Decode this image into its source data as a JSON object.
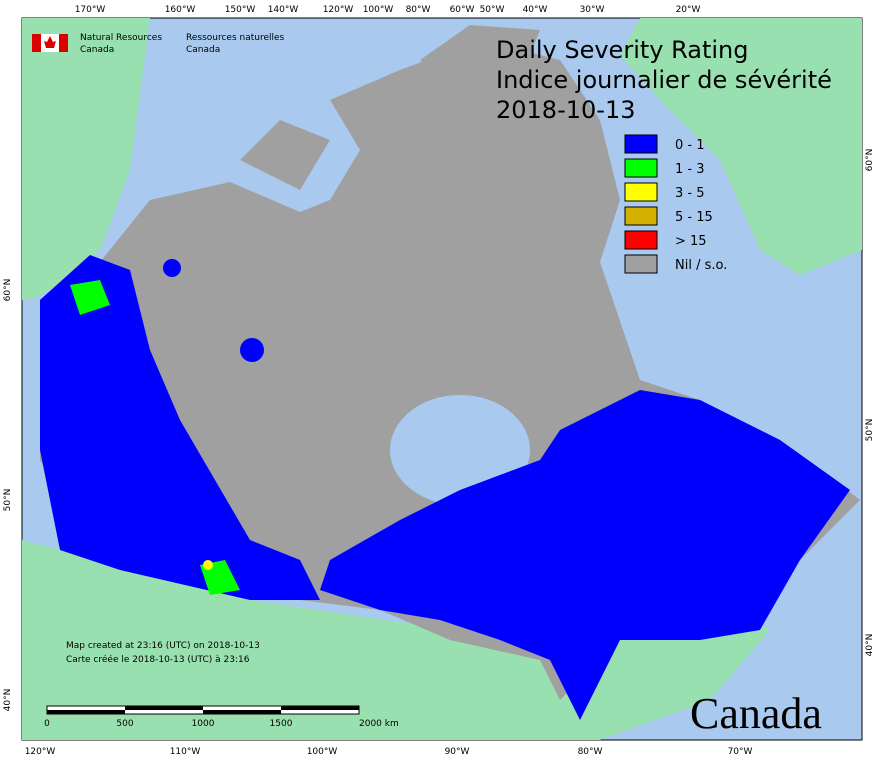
{
  "agency": {
    "en_line1": "Natural Resources",
    "en_line2": "Canada",
    "fr_line1": "Ressources naturelles",
    "fr_line2": "Canada"
  },
  "title": {
    "line1": "Daily Severity Rating",
    "line2": "Indice journalier de sévérité",
    "date": "2018-10-13"
  },
  "legend": [
    {
      "label": "0 - 1",
      "color": "#0000ff"
    },
    {
      "label": "1 - 3",
      "color": "#00ff00"
    },
    {
      "label": "3 - 5",
      "color": "#ffff00"
    },
    {
      "label": "5 - 15",
      "color": "#d4b000"
    },
    {
      "label": "> 15",
      "color": "#ff0000"
    },
    {
      "label": "Nil / s.o.",
      "color": "#a0a0a0"
    }
  ],
  "top_labels": [
    "170°W",
    "160°W",
    "150°W",
    "140°W",
    "120°W",
    "100°W",
    "80°W",
    "60°W",
    "50°W",
    "40°W",
    "30°W",
    "20°W"
  ],
  "bottom_labels": [
    "120°W",
    "110°W",
    "100°W",
    "90°W",
    "80°W",
    "70°W"
  ],
  "left_labels": [
    "60°N",
    "50°N",
    "40°N"
  ],
  "right_labels": [
    "60°N",
    "50°N",
    "40°N"
  ],
  "scale_labels": [
    "0",
    "500",
    "1000",
    "1500",
    "2000 km"
  ],
  "credits": {
    "en": "Map created at 23:16 (UTC) on 2018-10-13",
    "fr": "Carte créée le 2018-10-13 (UTC) à 23:16"
  },
  "wordmark": "Canada"
}
